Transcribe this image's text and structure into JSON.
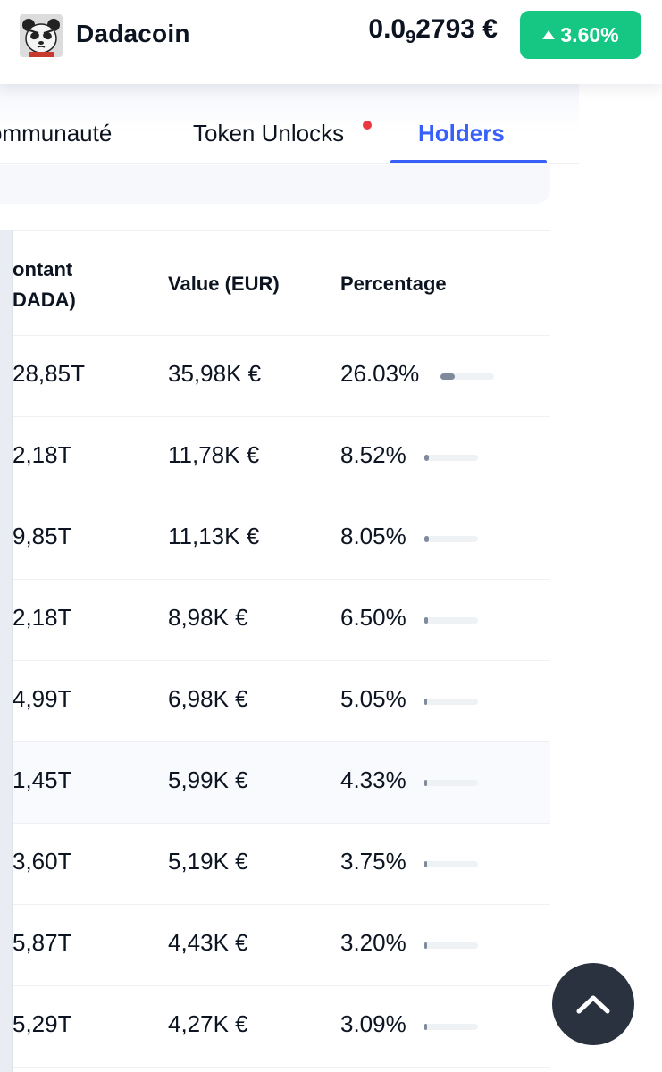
{
  "header": {
    "coin_name": "Dadacoin",
    "price_prefix": "0.0",
    "price_zeros": "9",
    "price_suffix": "2793 €",
    "change": "3.60%",
    "accent_up": "#16c784"
  },
  "tabs": [
    {
      "label": "ommunauté",
      "active": false
    },
    {
      "label": "Token Unlocks",
      "active": false,
      "has_dot": true
    },
    {
      "label": "Holders",
      "active": true
    }
  ],
  "table": {
    "headers": {
      "amount_line1": "ontant",
      "amount_line2": "DADA)",
      "value": "Value (EUR)",
      "percentage": "Percentage"
    },
    "rows": [
      {
        "amount": "28,85T",
        "value": "35,98K €",
        "percentage": "26.03%",
        "pct": 26.03
      },
      {
        "amount": "2,18T",
        "value": "11,78K €",
        "percentage": "8.52%",
        "pct": 8.52
      },
      {
        "amount": "9,85T",
        "value": "11,13K €",
        "percentage": "8.05%",
        "pct": 8.05
      },
      {
        "amount": "2,18T",
        "value": "8,98K €",
        "percentage": "6.50%",
        "pct": 6.5
      },
      {
        "amount": "4,99T",
        "value": "6,98K €",
        "percentage": "5.05%",
        "pct": 5.05
      },
      {
        "amount": "1,45T",
        "value": "5,99K €",
        "percentage": "4.33%",
        "pct": 4.33
      },
      {
        "amount": "3,60T",
        "value": "5,19K €",
        "percentage": "3.75%",
        "pct": 3.75
      },
      {
        "amount": "5,87T",
        "value": "4,43K €",
        "percentage": "3.20%",
        "pct": 3.2
      },
      {
        "amount": "5,29T",
        "value": "4,27K €",
        "percentage": "3.09%",
        "pct": 3.09
      }
    ]
  },
  "icons": {
    "logo": "panda-logo-icon",
    "change_arrow": "triangle-up-icon",
    "scroll_top": "chevron-up-icon"
  }
}
